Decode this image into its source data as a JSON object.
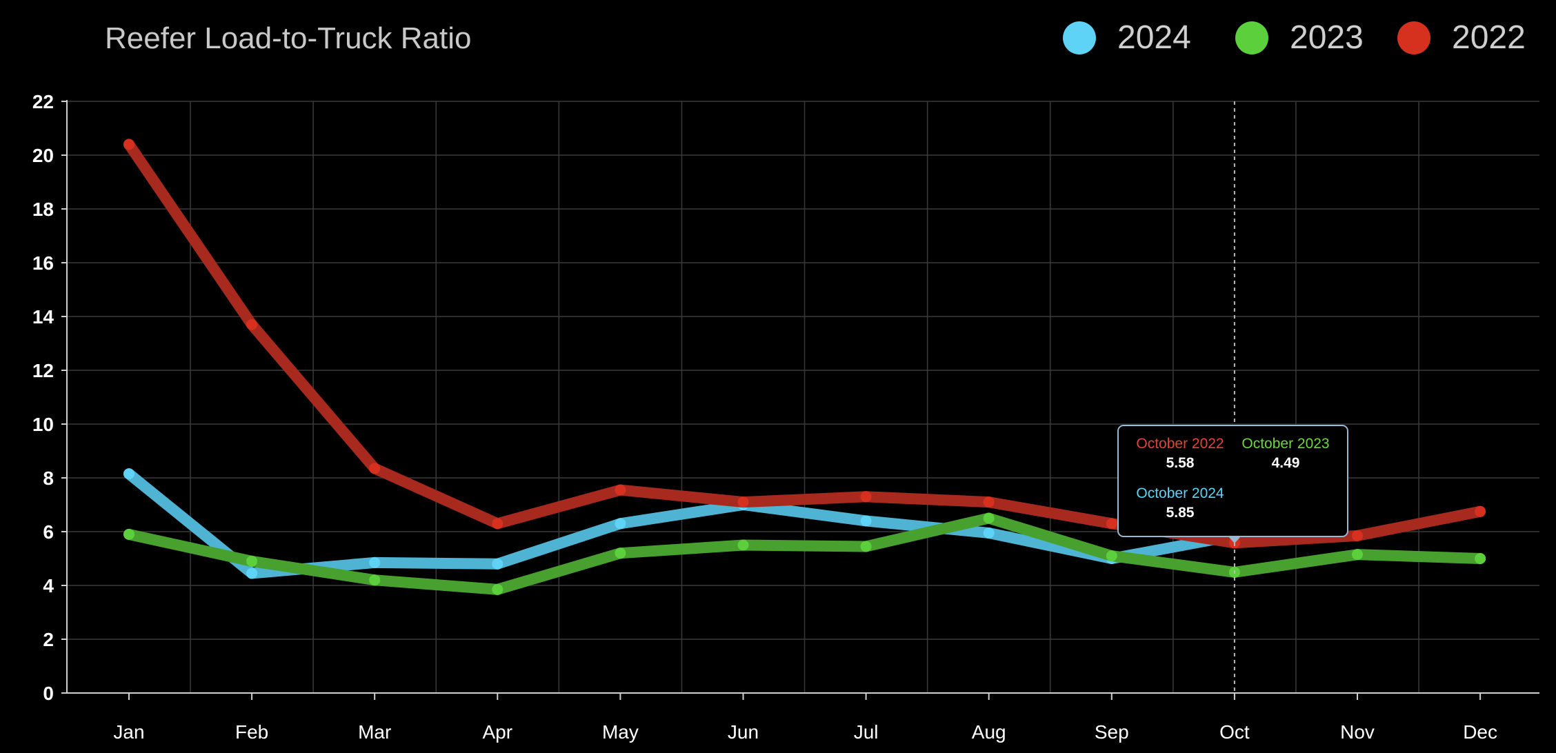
{
  "chart_data": {
    "type": "line",
    "title": "Reefer Load-to-Truck Ratio",
    "categories": [
      "Jan",
      "Feb",
      "Mar",
      "Apr",
      "May",
      "Jun",
      "Jul",
      "Aug",
      "Sep",
      "Oct",
      "Nov",
      "Dec"
    ],
    "ylim": [
      0,
      22
    ],
    "yticks": [
      0,
      2,
      4,
      6,
      8,
      10,
      12,
      14,
      16,
      18,
      20,
      22
    ],
    "grid": true,
    "legend_position": "top-right",
    "series": [
      {
        "name": "2024",
        "color": "#5fd3f5",
        "line_color": "#4fb3d3",
        "values": [
          8.15,
          4.45,
          4.85,
          4.8,
          6.3,
          7.0,
          6.4,
          5.95,
          5.0,
          5.85,
          null,
          null
        ]
      },
      {
        "name": "2023",
        "color": "#5ccf3c",
        "line_color": "#48a12e",
        "values": [
          5.9,
          4.9,
          4.2,
          3.85,
          5.2,
          5.5,
          5.45,
          6.5,
          5.1,
          4.49,
          5.15,
          5.0
        ]
      },
      {
        "name": "2022",
        "color": "#d6301f",
        "line_color": "#a82a1f",
        "values": [
          20.4,
          13.7,
          8.35,
          6.3,
          7.55,
          7.1,
          7.3,
          7.1,
          6.3,
          5.58,
          5.85,
          6.75
        ]
      }
    ],
    "tooltip": {
      "category_index": 9,
      "entries": [
        {
          "label": "October 2022",
          "value": "5.58",
          "color": "#e0443a"
        },
        {
          "label": "October 2023",
          "value": "4.49",
          "color": "#6fd640"
        },
        {
          "label": "October 2024",
          "value": "5.85",
          "color": "#5fd3f5"
        }
      ]
    }
  }
}
